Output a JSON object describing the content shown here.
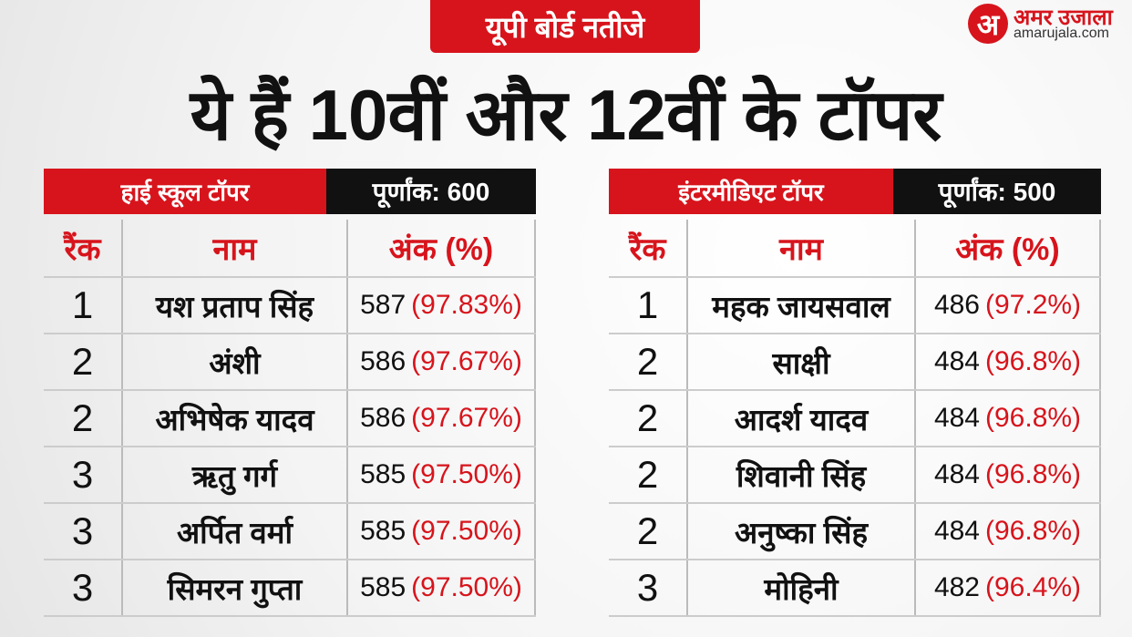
{
  "header": {
    "badge": "यूपी बोर्ड नतीजे",
    "title": "ये हैं 10वीं और 12वीं के टॉपर"
  },
  "logo": {
    "mark": "अ",
    "brand": "अमर उजाला",
    "site": "amarujala.com"
  },
  "tables": [
    {
      "title": "हाई स्कूल टॉपर",
      "total": "पूर्णांक: 600",
      "columns": [
        "रैंक",
        "नाम",
        "अंक (%)"
      ],
      "rows": [
        {
          "rank": "1",
          "name": "यश प्रताप सिंह",
          "marks": "587",
          "percent": "(97.83%)"
        },
        {
          "rank": "2",
          "name": "अंशी",
          "marks": "586",
          "percent": "(97.67%)"
        },
        {
          "rank": "2",
          "name": "अभिषेक यादव",
          "marks": "586",
          "percent": "(97.67%)"
        },
        {
          "rank": "3",
          "name": "ऋतु गर्ग",
          "marks": "585",
          "percent": "(97.50%)"
        },
        {
          "rank": "3",
          "name": "अर्पित वर्मा",
          "marks": "585",
          "percent": "(97.50%)"
        },
        {
          "rank": "3",
          "name": "सिमरन गुप्ता",
          "marks": "585",
          "percent": "(97.50%)"
        }
      ]
    },
    {
      "title": "इंटरमीडिएट टॉपर",
      "total": "पूर्णांक: 500",
      "columns": [
        "रैंक",
        "नाम",
        "अंक (%)"
      ],
      "rows": [
        {
          "rank": "1",
          "name": "महक जायसवाल",
          "marks": "486",
          "percent": "(97.2%)"
        },
        {
          "rank": "2",
          "name": "साक्षी",
          "marks": "484",
          "percent": "(96.8%)"
        },
        {
          "rank": "2",
          "name": "आदर्श यादव",
          "marks": "484",
          "percent": "(96.8%)"
        },
        {
          "rank": "2",
          "name": "शिवानी सिंह",
          "marks": "484",
          "percent": "(96.8%)"
        },
        {
          "rank": "2",
          "name": "अनुष्का सिंह",
          "marks": "484",
          "percent": "(96.8%)"
        },
        {
          "rank": "3",
          "name": "मोहिनी",
          "marks": "482",
          "percent": "(96.4%)"
        }
      ]
    }
  ]
}
